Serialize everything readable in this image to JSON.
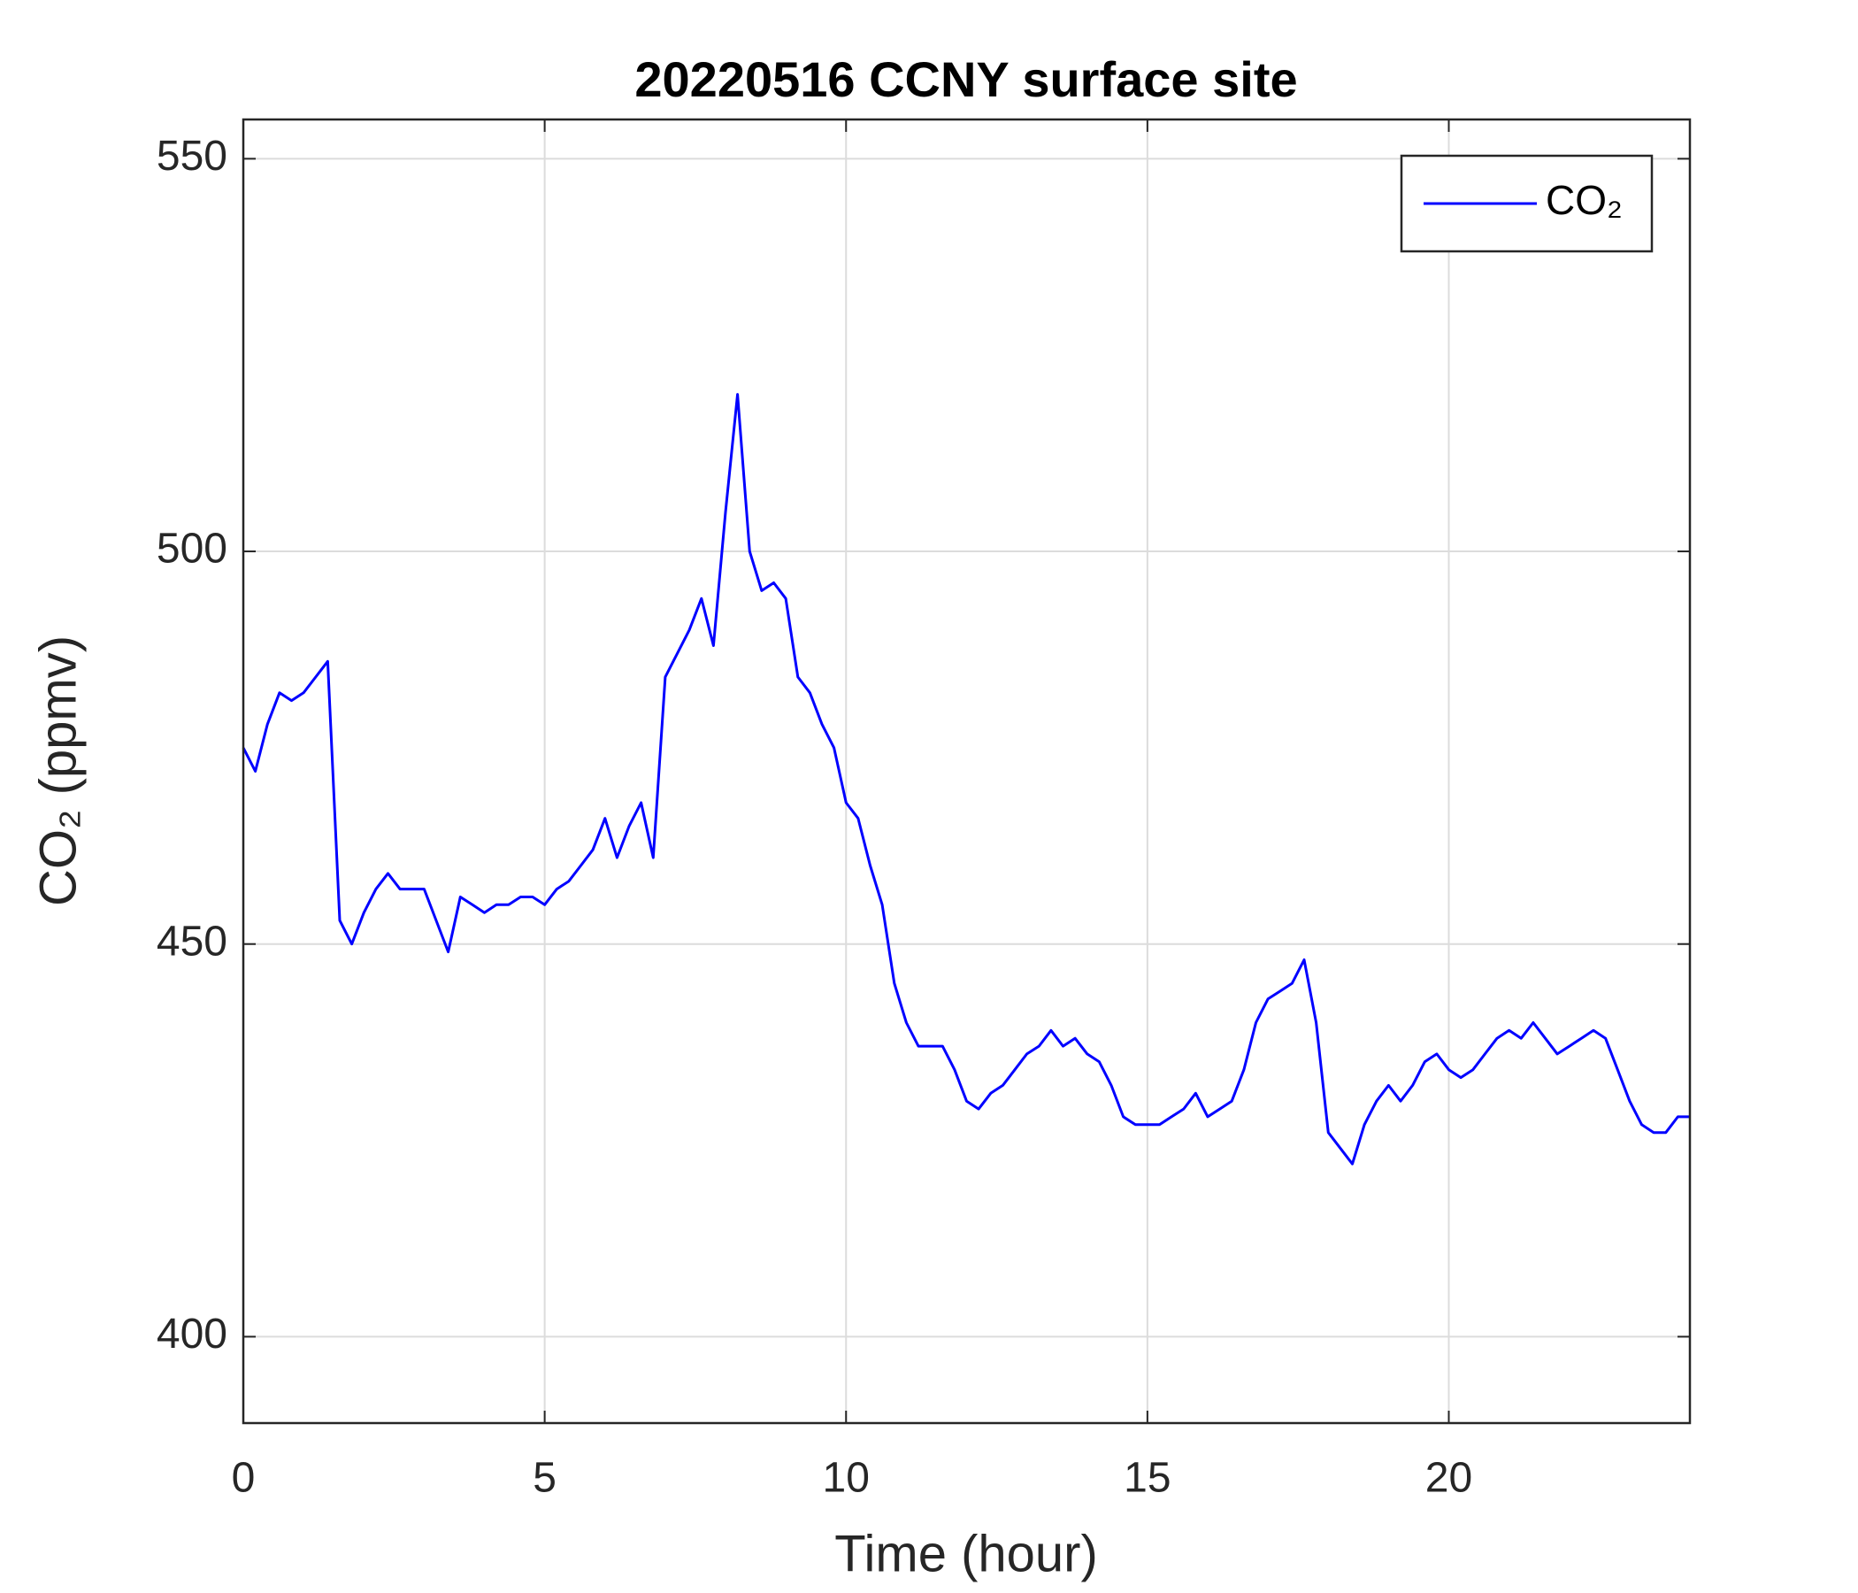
{
  "chart_data": {
    "type": "line",
    "title": "20220516 CCNY surface site",
    "xlabel": "Time (hour)",
    "ylabel": "CO₂ (ppmv)",
    "x": [
      0,
      0.2,
      0.4,
      0.6,
      0.8,
      1.0,
      1.2,
      1.4,
      1.6,
      1.8,
      2.0,
      2.2,
      2.4,
      2.6,
      2.8,
      3.0,
      3.2,
      3.4,
      3.6,
      3.8,
      4.0,
      4.2,
      4.4,
      4.6,
      4.8,
      5.0,
      5.2,
      5.4,
      5.6,
      5.8,
      6.0,
      6.2,
      6.4,
      6.6,
      6.8,
      7.0,
      7.2,
      7.4,
      7.6,
      7.8,
      8.0,
      8.2,
      8.4,
      8.6,
      8.8,
      9.0,
      9.2,
      9.4,
      9.6,
      9.8,
      10.0,
      10.2,
      10.4,
      10.6,
      10.8,
      11.0,
      11.2,
      11.4,
      11.6,
      11.8,
      12.0,
      12.2,
      12.4,
      12.6,
      12.8,
      13.0,
      13.2,
      13.4,
      13.6,
      13.8,
      14.0,
      14.2,
      14.4,
      14.6,
      14.8,
      15.0,
      15.2,
      15.4,
      15.6,
      15.8,
      16.0,
      16.2,
      16.4,
      16.6,
      16.8,
      17.0,
      17.2,
      17.4,
      17.6,
      17.8,
      18.0,
      18.2,
      18.4,
      18.6,
      18.8,
      19.0,
      19.2,
      19.4,
      19.6,
      19.8,
      20.0,
      20.2,
      20.4,
      20.6,
      20.8,
      21.0,
      21.2,
      21.4,
      21.6,
      21.8,
      22.0,
      22.2,
      22.4,
      22.6,
      22.8,
      23.0,
      23.2,
      23.4,
      23.6,
      23.8,
      24.0
    ],
    "series": [
      {
        "name": "CO₂",
        "color": "#0000ff",
        "values": [
          475,
          472,
          478,
          482,
          481,
          482,
          484,
          486,
          453,
          450,
          454,
          457,
          459,
          457,
          457,
          457,
          453,
          449,
          456,
          455,
          454,
          455,
          455,
          456,
          456,
          455,
          457,
          458,
          460,
          462,
          466,
          461,
          465,
          468,
          461,
          484,
          487,
          490,
          494,
          488,
          505,
          520,
          500,
          495,
          496,
          494,
          484,
          482,
          478,
          475,
          468,
          466,
          460,
          455,
          445,
          440,
          437,
          437,
          437,
          434,
          430,
          429,
          431,
          432,
          434,
          436,
          437,
          439,
          437,
          438,
          436,
          435,
          432,
          428,
          427,
          427,
          427,
          428,
          429,
          431,
          428,
          429,
          430,
          434,
          440,
          443,
          444,
          445,
          448,
          440,
          426,
          424,
          422,
          427,
          430,
          432,
          430,
          432,
          435,
          436,
          434,
          433,
          434,
          436,
          438,
          439,
          438,
          440,
          438,
          436,
          437,
          438,
          439,
          438,
          434,
          430,
          427,
          426,
          426,
          428,
          428
        ]
      }
    ],
    "xlim": [
      0,
      24
    ],
    "xticks": [
      0,
      5,
      10,
      15,
      20
    ],
    "ylim": [
      389,
      555
    ],
    "yticks": [
      400,
      450,
      500,
      550
    ],
    "grid": true,
    "legend": "upper right"
  }
}
